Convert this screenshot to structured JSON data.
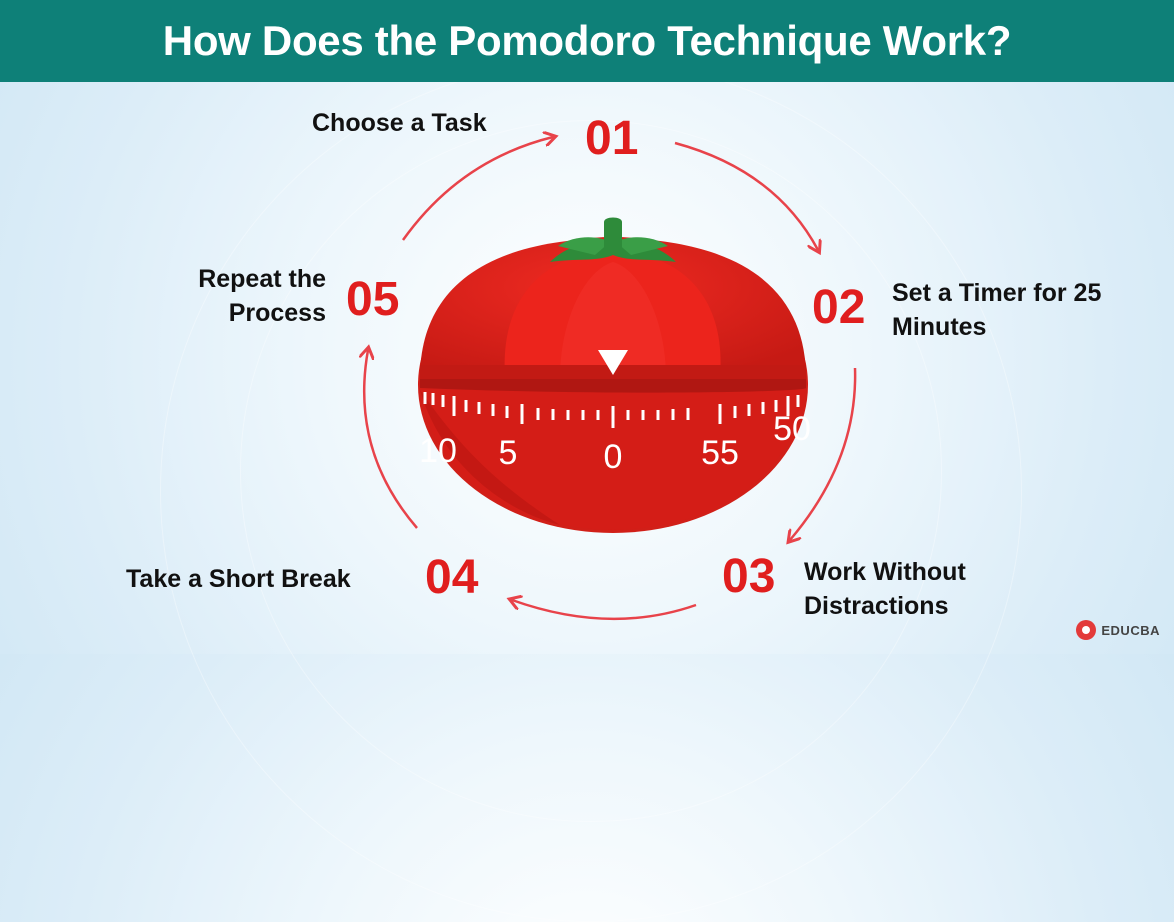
{
  "title": "How Does the Pomodoro Technique Work?",
  "steps": [
    {
      "number": "01",
      "label": "Choose a Task"
    },
    {
      "number": "02",
      "label": "Set a Timer for 25 Minutes"
    },
    {
      "number": "03",
      "label": "Work Without Distractions"
    },
    {
      "number": "04",
      "label": "Take a Short Break"
    },
    {
      "number": "05",
      "label": "Repeat the Process"
    }
  ],
  "timer_dial": [
    "10",
    "5",
    "0",
    "55",
    "50"
  ],
  "brand": "EDUCBA",
  "colors": {
    "header_bg": "#0e8078",
    "accent_red": "#e01e1e",
    "arrow": "#e8434a",
    "tomato": "#d8241c",
    "leaf": "#2e8b3a"
  },
  "icons": [
    "tomato-timer-icon",
    "cycle-arrow-icon",
    "educba-logo-icon"
  ]
}
